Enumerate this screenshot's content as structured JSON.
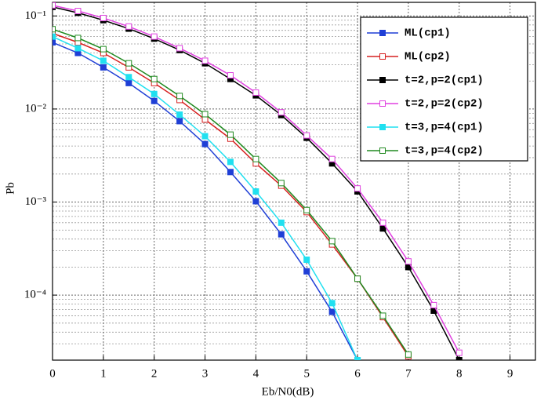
{
  "chart_data": {
    "type": "line",
    "xlabel": "Eb/N0(dB)",
    "ylabel": "Pb",
    "x": [
      0,
      0.5,
      1,
      1.5,
      2,
      2.5,
      3,
      3.5,
      4,
      4.5,
      5,
      5.5,
      6,
      6.5,
      7,
      7.5,
      8
    ],
    "series": [
      {
        "name": "ML(cp1)",
        "color": "#1f3fd6",
        "marker": "filled-square",
        "values": [
          0.052,
          0.04,
          0.028,
          0.019,
          0.0122,
          0.0074,
          0.0042,
          0.0021,
          0.00102,
          0.00045,
          0.00018,
          6.6e-05,
          2e-05,
          null,
          null,
          null,
          null
        ]
      },
      {
        "name": "ML(cp2)",
        "color": "#d62020",
        "marker": "open-square",
        "values": [
          0.065,
          0.052,
          0.04,
          0.028,
          0.019,
          0.0125,
          0.0077,
          0.0048,
          0.0026,
          0.0015,
          0.00078,
          0.00035,
          0.00015,
          5.8e-05,
          2.2e-05,
          null,
          null
        ]
      },
      {
        "name": "t=2,p=2(cp1)",
        "color": "#000000",
        "marker": "filled-square",
        "values": [
          0.125,
          0.108,
          0.09,
          0.073,
          0.057,
          0.043,
          0.031,
          0.021,
          0.014,
          0.0086,
          0.0049,
          0.0026,
          0.0013,
          0.00052,
          0.0002,
          6.8e-05,
          2e-05
        ]
      },
      {
        "name": "t=2,p=2(cp2)",
        "color": "#e040e0",
        "marker": "open-square",
        "values": [
          0.13,
          0.113,
          0.095,
          0.077,
          0.06,
          0.045,
          0.033,
          0.023,
          0.015,
          0.0092,
          0.0052,
          0.0029,
          0.0014,
          0.0006,
          0.00023,
          7.8e-05,
          2.4e-05
        ]
      },
      {
        "name": "t=3,p=4(cp1)",
        "color": "#20e0f0",
        "marker": "filled-square",
        "values": [
          0.06,
          0.045,
          0.033,
          0.022,
          0.0145,
          0.0087,
          0.0051,
          0.0027,
          0.0013,
          0.0006,
          0.00024,
          8.2e-05,
          2e-05,
          null,
          null,
          null,
          null
        ]
      },
      {
        "name": "t=3,p=4(cp2)",
        "color": "#208a20",
        "marker": "open-square",
        "values": [
          0.072,
          0.058,
          0.044,
          0.031,
          0.021,
          0.0138,
          0.0088,
          0.0053,
          0.0029,
          0.0016,
          0.00082,
          0.00038,
          0.00015,
          6e-05,
          2.3e-05,
          null,
          null
        ]
      }
    ],
    "xlim": [
      0,
      9.5
    ],
    "xticks": [
      0,
      1,
      2,
      3,
      4,
      5,
      6,
      7,
      8,
      9
    ],
    "ylim": [
      2e-05,
      0.14
    ],
    "ylog": true,
    "yticks": [
      {
        "value": 0.1,
        "label": "10⁻¹"
      },
      {
        "value": 0.01,
        "label": "10⁻²"
      },
      {
        "value": 0.001,
        "label": "10⁻³"
      },
      {
        "value": 0.0001,
        "label": "10⁻⁴"
      }
    ],
    "grid": true,
    "minor_grid": true,
    "legend": "upper right"
  }
}
